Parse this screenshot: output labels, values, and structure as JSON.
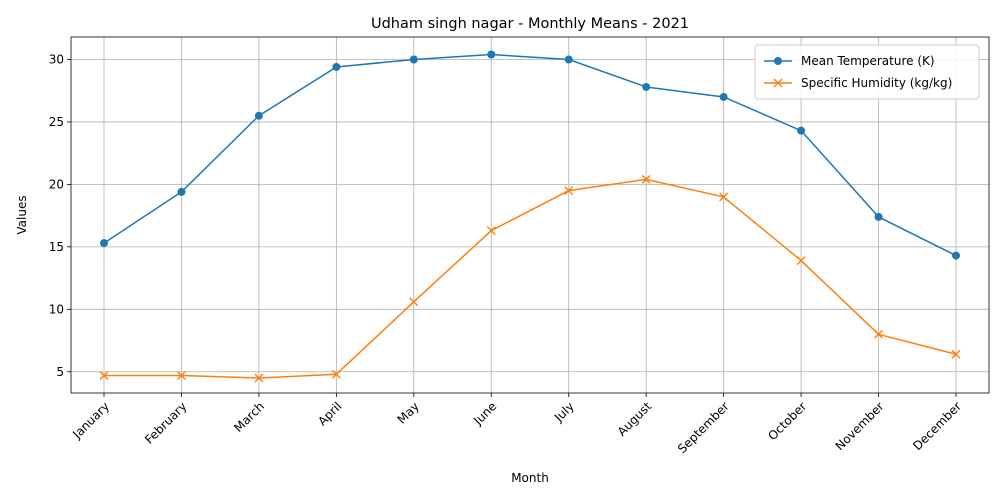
{
  "chart_data": {
    "type": "line",
    "title": "Udham singh nagar - Monthly Means - 2021",
    "xlabel": "Month",
    "ylabel": "Values",
    "categories": [
      "January",
      "February",
      "March",
      "April",
      "May",
      "June",
      "July",
      "August",
      "September",
      "October",
      "November",
      "December"
    ],
    "yticks": [
      5,
      10,
      15,
      20,
      25,
      30
    ],
    "ylim": [
      3.3,
      31.8
    ],
    "grid": true,
    "legend_position": "top-right",
    "series": [
      {
        "name": "Mean Temperature (K)",
        "color": "#1f77b4",
        "marker": "circle",
        "values": [
          15.3,
          19.4,
          25.5,
          29.4,
          30.0,
          30.4,
          30.0,
          27.8,
          27.0,
          24.3,
          17.4,
          14.3
        ]
      },
      {
        "name": "Specific Humidity (kg/kg)",
        "color": "#ff7f0e",
        "marker": "x",
        "values": [
          4.7,
          4.7,
          4.5,
          4.8,
          10.6,
          16.3,
          19.5,
          20.4,
          19.0,
          13.9,
          8.0,
          6.4
        ]
      }
    ]
  }
}
